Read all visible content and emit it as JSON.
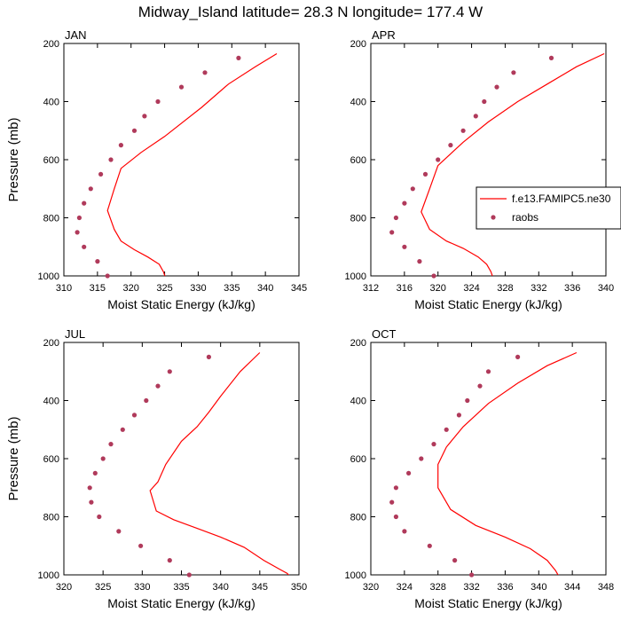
{
  "figure_title": "Midway_Island  latitude= 28.3 N longitude= 177.4 W",
  "legend": {
    "model_label": "f.e13.FAMIPC5.ne30",
    "obs_label": "raobs"
  },
  "colors": {
    "model": "#ff0000",
    "obs": "#b03a5b",
    "axis": "#000000"
  },
  "chart_data": [
    {
      "type": "line",
      "title": "JAN",
      "xlabel": "Moist Static Energy (kJ/kg)",
      "ylabel": "Pressure (mb)",
      "xlim": [
        310,
        345
      ],
      "ylim": [
        1000,
        200
      ],
      "xticks": [
        310,
        315,
        320,
        325,
        330,
        335,
        340,
        345
      ],
      "yticks": [
        200,
        400,
        600,
        800,
        1000
      ],
      "series": [
        {
          "name": "f.e13.FAMIPC5.ne30",
          "kind": "line",
          "x": [
            341.7,
            338.5,
            334.5,
            330.5,
            325.0,
            321.5,
            318.5,
            317.5,
            316.5,
            317.5,
            318.5,
            320.5,
            322.5,
            324.2,
            324.8,
            325.2
          ],
          "y": [
            235,
            280,
            340,
            420,
            520,
            575,
            630,
            700,
            775,
            840,
            880,
            910,
            935,
            960,
            985,
            1010
          ]
        },
        {
          "name": "raobs",
          "kind": "scatter",
          "x": [
            336.0,
            331.0,
            327.5,
            324.0,
            322.0,
            320.5,
            318.5,
            317.0,
            315.5,
            314.0,
            313.0,
            312.3,
            312.0,
            313.0,
            315.0,
            316.5
          ],
          "y": [
            250,
            300,
            350,
            400,
            450,
            500,
            550,
            600,
            650,
            700,
            750,
            800,
            850,
            900,
            950,
            1000
          ]
        }
      ]
    },
    {
      "type": "line",
      "title": "APR",
      "xlabel": "Moist Static Energy (kJ/kg)",
      "ylabel": "",
      "xlim": [
        312,
        340
      ],
      "ylim": [
        1000,
        200
      ],
      "xticks": [
        312,
        316,
        320,
        324,
        328,
        332,
        336,
        340
      ],
      "yticks": [
        200,
        400,
        600,
        800,
        1000
      ],
      "series": [
        {
          "name": "f.e13.FAMIPC5.ne30",
          "kind": "line",
          "x": [
            339.8,
            336.5,
            333.0,
            329.5,
            326.0,
            323.0,
            320.0,
            319.0,
            318.0,
            319.0,
            321.0,
            323.0,
            324.8,
            325.8,
            326.3,
            326.6
          ],
          "y": [
            235,
            280,
            340,
            400,
            470,
            540,
            620,
            700,
            780,
            840,
            880,
            905,
            935,
            960,
            985,
            1010
          ]
        },
        {
          "name": "raobs",
          "kind": "scatter",
          "x": [
            333.5,
            329.0,
            327.0,
            325.5,
            324.5,
            323.0,
            321.5,
            320.0,
            318.5,
            317.0,
            316.0,
            315.0,
            314.5,
            316.0,
            317.8,
            319.5
          ],
          "y": [
            250,
            300,
            350,
            400,
            450,
            500,
            550,
            600,
            650,
            700,
            750,
            800,
            850,
            900,
            950,
            1000
          ]
        }
      ]
    },
    {
      "type": "line",
      "title": "JUL",
      "xlabel": "Moist Static Energy (kJ/kg)",
      "ylabel": "Pressure (mb)",
      "xlim": [
        320,
        350
      ],
      "ylim": [
        1000,
        200
      ],
      "xticks": [
        320,
        325,
        330,
        335,
        340,
        345,
        350
      ],
      "yticks": [
        200,
        400,
        600,
        800,
        1000
      ],
      "series": [
        {
          "name": "f.e13.FAMIPC5.ne30",
          "kind": "line",
          "x": [
            345.0,
            342.5,
            340.0,
            338.5,
            337.0,
            335.0,
            333.0,
            332.0,
            331.0,
            331.8,
            334.0,
            337.0,
            340.0,
            343.0,
            345.5,
            347.5,
            348.5,
            349.0
          ],
          "y": [
            235,
            300,
            385,
            440,
            490,
            540,
            620,
            680,
            710,
            780,
            810,
            840,
            870,
            905,
            950,
            980,
            995,
            1010
          ]
        },
        {
          "name": "raobs",
          "kind": "scatter",
          "x": [
            338.5,
            333.5,
            332.0,
            330.5,
            329.0,
            327.5,
            326.0,
            325.0,
            324.0,
            323.3,
            323.5,
            324.5,
            327.0,
            329.8,
            333.5,
            336.0
          ],
          "y": [
            250,
            300,
            350,
            400,
            450,
            500,
            550,
            600,
            650,
            700,
            750,
            800,
            850,
            900,
            950,
            1000
          ]
        }
      ]
    },
    {
      "type": "line",
      "title": "OCT",
      "xlabel": "Moist Static Energy (kJ/kg)",
      "ylabel": "",
      "xlim": [
        320,
        348
      ],
      "ylim": [
        1000,
        200
      ],
      "xticks": [
        320,
        324,
        328,
        332,
        336,
        340,
        344,
        348
      ],
      "yticks": [
        200,
        400,
        600,
        800,
        1000
      ],
      "series": [
        {
          "name": "f.e13.FAMIPC5.ne30",
          "kind": "line",
          "x": [
            344.5,
            341.0,
            337.5,
            334.0,
            331.0,
            329.0,
            328.0,
            328.0,
            329.5,
            332.5,
            336.0,
            339.0,
            341.0,
            342.0,
            342.5
          ],
          "y": [
            235,
            280,
            340,
            410,
            490,
            560,
            620,
            700,
            775,
            830,
            870,
            910,
            950,
            985,
            1010
          ]
        },
        {
          "name": "raobs",
          "kind": "scatter",
          "x": [
            337.5,
            334.0,
            333.0,
            331.5,
            330.5,
            329.0,
            327.5,
            326.0,
            324.5,
            323.0,
            322.5,
            323.0,
            324.0,
            327.0,
            330.0,
            332.0
          ],
          "y": [
            250,
            300,
            350,
            400,
            450,
            500,
            550,
            600,
            650,
            700,
            750,
            800,
            850,
            900,
            950,
            1000
          ]
        }
      ]
    }
  ]
}
